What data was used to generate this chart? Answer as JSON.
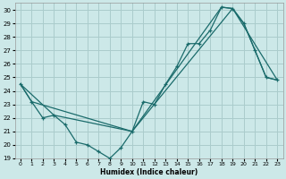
{
  "xlabel": "Humidex (Indice chaleur)",
  "bg_color": "#cce8e8",
  "grid_color": "#aacccc",
  "line_color": "#1a6b6b",
  "xlim": [
    -0.5,
    23.5
  ],
  "ylim": [
    19,
    30.5
  ],
  "xticks": [
    0,
    1,
    2,
    3,
    4,
    5,
    6,
    7,
    8,
    9,
    10,
    11,
    12,
    13,
    14,
    15,
    16,
    17,
    18,
    19,
    20,
    21,
    22,
    23
  ],
  "yticks": [
    19,
    20,
    21,
    22,
    23,
    24,
    25,
    26,
    27,
    28,
    29,
    30
  ],
  "line1_x": [
    0,
    1,
    2,
    3,
    4,
    5,
    6,
    7,
    8,
    9,
    10,
    11,
    12,
    13,
    14,
    15,
    16,
    17,
    18,
    19,
    20,
    21,
    22,
    23
  ],
  "line1_y": [
    24.5,
    23.2,
    22.0,
    22.2,
    21.5,
    20.2,
    20.0,
    19.5,
    19.0,
    19.8,
    21.0,
    23.2,
    23.0,
    24.5,
    25.8,
    27.5,
    27.5,
    28.5,
    30.2,
    30.1,
    29.0,
    27.0,
    25.0,
    24.8
  ],
  "line2_x": [
    0,
    1,
    10,
    18,
    19,
    20,
    21,
    22,
    23
  ],
  "line2_y": [
    24.5,
    23.2,
    21.0,
    30.2,
    30.1,
    29.0,
    27.0,
    25.0,
    24.8
  ],
  "line3_x": [
    0,
    3,
    10,
    19,
    23
  ],
  "line3_y": [
    24.5,
    22.2,
    21.0,
    30.1,
    24.8
  ]
}
